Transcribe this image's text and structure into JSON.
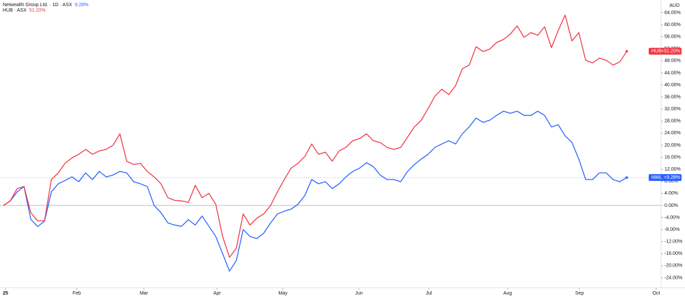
{
  "chart_data": {
    "type": "line",
    "currency": "AUD",
    "xlim": [
      -0.5,
      96
    ],
    "xticks": [
      {
        "value": 0.3,
        "label": "25"
      },
      {
        "value": 10.7,
        "label": "Feb"
      },
      {
        "value": 20.5,
        "label": "Mar"
      },
      {
        "value": 31.2,
        "label": "Apr"
      },
      {
        "value": 40.8,
        "label": "May"
      },
      {
        "value": 51.9,
        "label": "Jun"
      },
      {
        "value": 62.1,
        "label": "Jul"
      },
      {
        "value": 73.6,
        "label": "Aug"
      },
      {
        "value": 84.1,
        "label": "Sep"
      },
      {
        "value": 95.3,
        "label": "Oct"
      }
    ],
    "ylim": [
      -27.3,
      68.2
    ],
    "yticks": [
      {
        "value": 64,
        "label": "64.00%"
      },
      {
        "value": 60,
        "label": "60.00%"
      },
      {
        "value": 56,
        "label": "56.00%"
      },
      {
        "value": 52,
        "label": "52.00%"
      },
      {
        "value": 48,
        "label": "48.00%"
      },
      {
        "value": 44,
        "label": "44.00%"
      },
      {
        "value": 40,
        "label": "40.00%"
      },
      {
        "value": 36,
        "label": "36.00%"
      },
      {
        "value": 32,
        "label": "32.00%"
      },
      {
        "value": 28,
        "label": "28.00%"
      },
      {
        "value": 24,
        "label": "24.00%"
      },
      {
        "value": 20,
        "label": "20.00%"
      },
      {
        "value": 16,
        "label": "16.00%"
      },
      {
        "value": 12,
        "label": "12.00%"
      },
      {
        "value": 8,
        "label": "8.00%"
      },
      {
        "value": 4,
        "label": "4.00%"
      },
      {
        "value": 0,
        "label": "0.00%"
      },
      {
        "value": -4,
        "label": "-4.00%"
      },
      {
        "value": -8,
        "label": "-8.00%"
      },
      {
        "value": -12,
        "label": "-12.00%"
      },
      {
        "value": -16,
        "label": "-16.00%"
      },
      {
        "value": -20,
        "label": "-20.00%"
      },
      {
        "value": -24,
        "label": "-24.00%"
      }
    ],
    "series": [
      {
        "name": "Netwealth Group Ltd. · 1D · ASX",
        "symbol": "NWL",
        "legend_value": "9.28%",
        "badge_value": "+9.28%",
        "color": "#2962ff",
        "values": [
          0,
          1.5,
          4.5,
          6.3,
          -4.6,
          -7,
          -5.2,
          4.5,
          7.2,
          8.3,
          9.5,
          7.9,
          10.8,
          8.6,
          11.3,
          9.5,
          10.1,
          11.3,
          10.8,
          7.9,
          7.2,
          6.3,
          0,
          -2.4,
          -5.8,
          -6.5,
          -6.9,
          -4.7,
          -6.5,
          -3.5,
          -6.9,
          -10.3,
          -16,
          -21.8,
          -18.3,
          -8,
          -10.3,
          -11,
          -9.2,
          -5.8,
          -2.8,
          -1.9,
          -1.2,
          0.4,
          3.3,
          8.6,
          7.2,
          7.9,
          5.6,
          7.2,
          9.5,
          11.3,
          12.4,
          14.2,
          12.9,
          10.1,
          8.6,
          8.6,
          7.9,
          11.3,
          13.6,
          15.4,
          17,
          19.3,
          20.4,
          21.5,
          20.4,
          23.8,
          26.1,
          29,
          27.6,
          28.3,
          29.9,
          31.3,
          30.6,
          31.3,
          29.9,
          29.9,
          31.3,
          29.9,
          26.1,
          26.8,
          23.1,
          20.9,
          15.4,
          8.6,
          8.6,
          10.8,
          10.8,
          8.6,
          7.9,
          9.28
        ]
      },
      {
        "name": "HUB · ASX",
        "symbol": "HUB",
        "legend_value": "51.20%",
        "badge_value": "+51.20%",
        "color": "#f23645",
        "values": [
          0,
          1.5,
          5.6,
          6.3,
          -2.4,
          -5.1,
          -5.1,
          8.6,
          10.8,
          14,
          15.8,
          17,
          18.6,
          17,
          18.1,
          18.6,
          20,
          23.8,
          14.7,
          13.6,
          14,
          11.3,
          9.5,
          7.2,
          2.6,
          1.7,
          1.5,
          1,
          6.7,
          2.6,
          4,
          0.4,
          -10.3,
          -17.2,
          -14.2,
          -2.8,
          -6.5,
          -4.2,
          -2.8,
          0,
          4.5,
          8.6,
          12.4,
          14,
          16.3,
          20.4,
          17,
          17.7,
          14.7,
          18.1,
          19.3,
          21.5,
          22.2,
          23.8,
          21.5,
          20.9,
          19.3,
          18.6,
          19.3,
          22.7,
          26.1,
          28.3,
          32.2,
          36.3,
          38.6,
          36.8,
          39.7,
          45.4,
          46.6,
          52.7,
          51.1,
          51.9,
          54.1,
          55.1,
          56.9,
          59.6,
          55.8,
          57.4,
          56.5,
          59.3,
          52.4,
          58.1,
          63.2,
          54.6,
          57.4,
          48.2,
          47.3,
          48.9,
          48.2,
          46.6,
          47.7,
          51.2
        ]
      }
    ]
  }
}
